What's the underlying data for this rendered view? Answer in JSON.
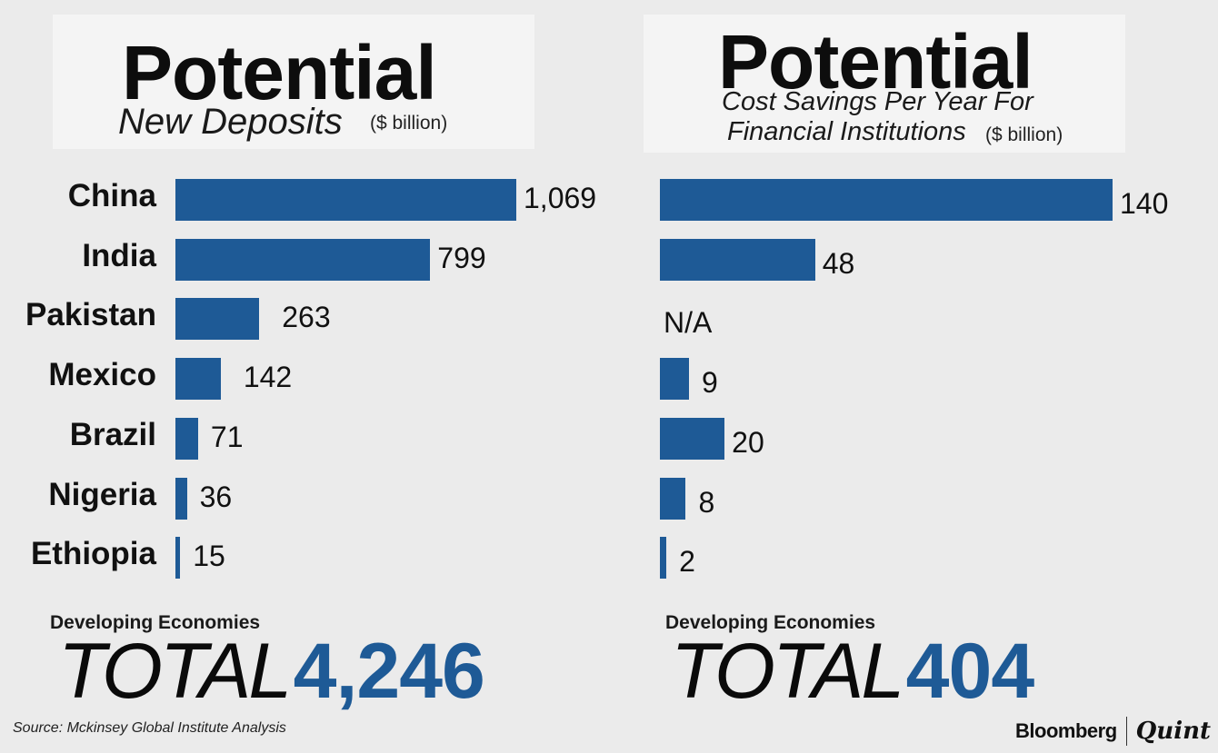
{
  "left_title": {
    "main": "Potential",
    "sub": "New Deposits",
    "unit": "($ billion)"
  },
  "right_title": {
    "main": "Potential",
    "sub_line1": "Cost Savings Per Year For",
    "sub_line2": "Financial Institutions",
    "unit": "($ billion)"
  },
  "chart_data": [
    {
      "type": "bar",
      "orientation": "horizontal",
      "title": "Potential New Deposits ($ billion)",
      "categories": [
        "China",
        "India",
        "Pakistan",
        "Mexico",
        "Brazil",
        "Nigeria",
        "Ethiopia"
      ],
      "values": [
        1069,
        799,
        263,
        142,
        71,
        36,
        15
      ],
      "value_labels": [
        "1,069",
        "799",
        "263",
        "142",
        "71",
        "36",
        "15"
      ],
      "xlim": [
        0,
        1069
      ]
    },
    {
      "type": "bar",
      "orientation": "horizontal",
      "title": "Potential Cost Savings Per Year For Financial Institutions ($ billion)",
      "categories": [
        "China",
        "India",
        "Pakistan",
        "Mexico",
        "Brazil",
        "Nigeria",
        "Ethiopia"
      ],
      "values": [
        140,
        48,
        null,
        9,
        20,
        8,
        2
      ],
      "value_labels": [
        "140",
        "48",
        "N/A",
        "9",
        "20",
        "8",
        "2"
      ],
      "xlim": [
        0,
        140
      ]
    }
  ],
  "left_total": {
    "caption": "Developing Economies",
    "word": "TOTAL",
    "value": "4,246"
  },
  "right_total": {
    "caption": "Developing Economies",
    "word": "TOTAL",
    "value": "404"
  },
  "source": "Source: Mckinsey Global Institute Analysis",
  "brand": {
    "left": "Bloomberg",
    "right": "Quint"
  },
  "colors": {
    "bar": "#1e5a96",
    "total_value": "#1e5a96",
    "background": "#ebebeb"
  }
}
